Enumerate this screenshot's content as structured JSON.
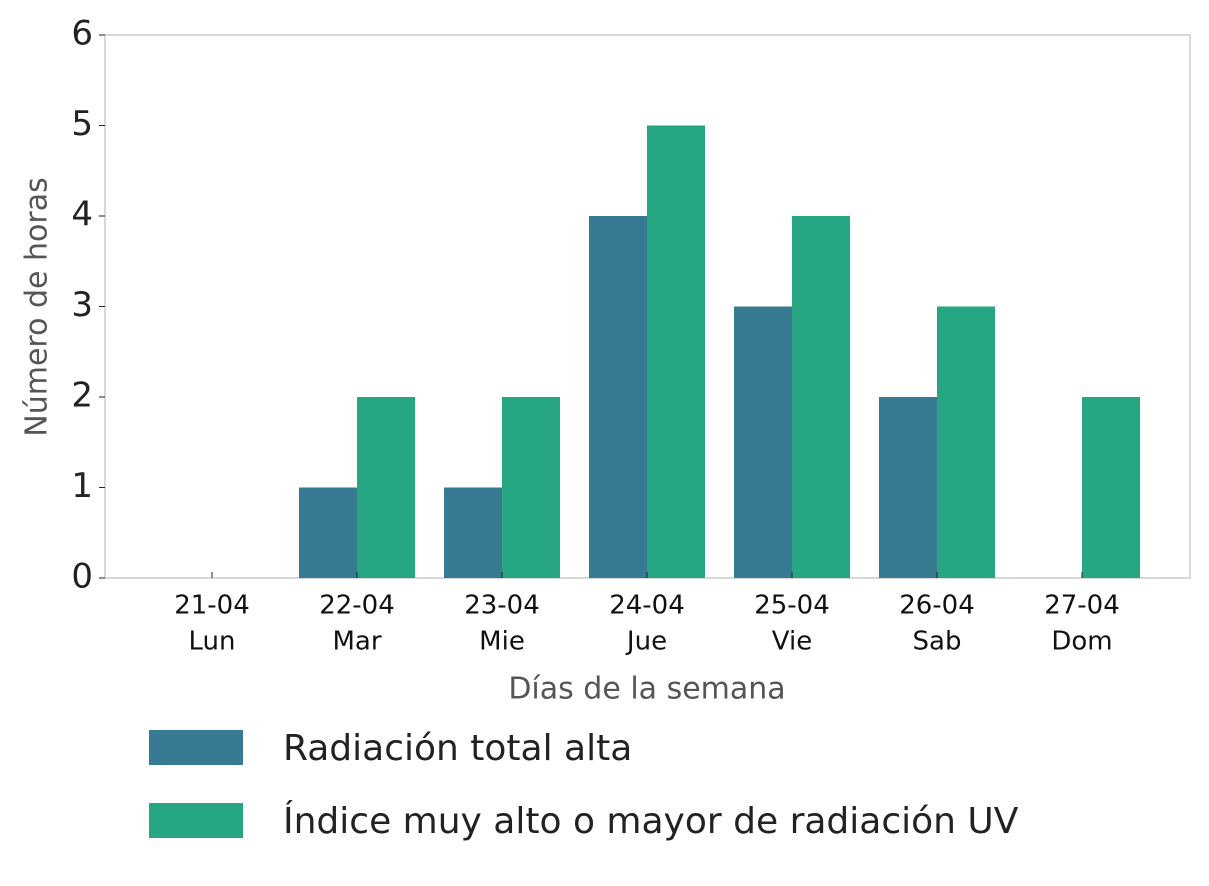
{
  "chart_data": {
    "type": "bar",
    "xlabel": "Días de la semana",
    "ylabel": "Número de horas",
    "categories": [
      [
        "21-04",
        "Lun"
      ],
      [
        "22-04",
        "Mar"
      ],
      [
        "23-04",
        "Mie"
      ],
      [
        "24-04",
        "Jue"
      ],
      [
        "25-04",
        "Vie"
      ],
      [
        "26-04",
        "Sab"
      ],
      [
        "27-04",
        "Dom"
      ]
    ],
    "series": [
      {
        "name": "Radiación total alta",
        "color": "#367a93",
        "values": [
          0,
          1,
          1,
          4,
          3,
          2,
          0
        ]
      },
      {
        "name": "Índice muy alto o mayor de radiación UV",
        "color": "#27a683",
        "values": [
          0,
          2,
          2,
          5,
          4,
          3,
          2
        ]
      }
    ],
    "ylim": [
      0,
      6
    ],
    "yticks": [
      0,
      1,
      2,
      3,
      4,
      5,
      6
    ],
    "grid": false,
    "legend": "bottom"
  }
}
